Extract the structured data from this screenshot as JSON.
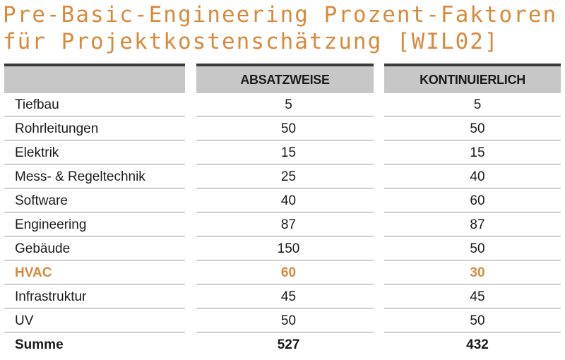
{
  "title": {
    "line1": "Pre-Basic-Engineering Prozent-Faktoren",
    "line2": "für Projektkostenschätzung [WIL02]"
  },
  "table": {
    "columns": [
      "",
      "ABSATZWEISE",
      "KONTINUIERLICH"
    ],
    "rows": [
      {
        "label": "Tiefbau",
        "absatzweise": "5",
        "kontinuierlich": "5"
      },
      {
        "label": "Rohrleitungen",
        "absatzweise": "50",
        "kontinuierlich": "50"
      },
      {
        "label": "Elektrik",
        "absatzweise": "15",
        "kontinuierlich": "15"
      },
      {
        "label": "Mess- & Regeltechnik",
        "absatzweise": "25",
        "kontinuierlich": "40"
      },
      {
        "label": "Software",
        "absatzweise": "40",
        "kontinuierlich": "60"
      },
      {
        "label": "Engineering",
        "absatzweise": "87",
        "kontinuierlich": "87"
      },
      {
        "label": "Gebäude",
        "absatzweise": "150",
        "kontinuierlich": "50"
      },
      {
        "label": "HVAC",
        "absatzweise": "60",
        "kontinuierlich": "30"
      },
      {
        "label": "Infrastruktur",
        "absatzweise": "45",
        "kontinuierlich": "45"
      },
      {
        "label": "UV",
        "absatzweise": "50",
        "kontinuierlich": "50"
      },
      {
        "label": "Summe",
        "absatzweise": "527",
        "kontinuierlich": "432"
      }
    ]
  },
  "colors": {
    "accent": "#d9893a",
    "header_bar": "#c7c7c7",
    "header_rule": "#3a3a3a",
    "row_rule": "#9a9a9a"
  }
}
